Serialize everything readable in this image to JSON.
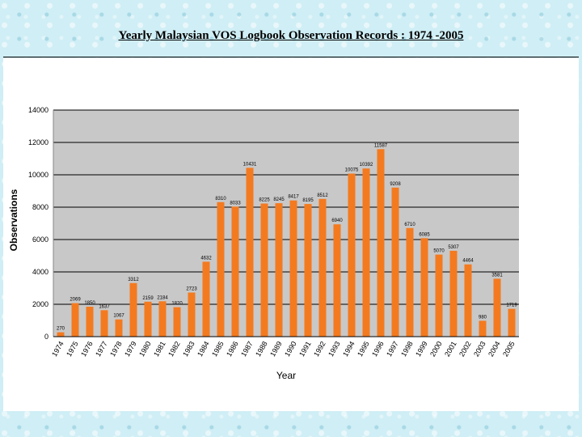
{
  "slide": {
    "title": "Yearly Malaysian VOS Logbook Observation Records : 1974 -2005"
  },
  "colors": {
    "bar": "#f47a1f",
    "plot_background": "#c8c8c8",
    "panel_background": "#ffffff",
    "slide_background": "#cfeef5"
  },
  "chart_data": {
    "type": "bar",
    "title": "",
    "xlabel": "Year",
    "ylabel": "Observations",
    "ylim": [
      0,
      14000
    ],
    "yticks": [
      0,
      2000,
      4000,
      6000,
      8000,
      10000,
      12000,
      14000
    ],
    "grid": "horizontal",
    "legend": "none",
    "categories": [
      "1974",
      "1975",
      "1976",
      "1977",
      "1978",
      "1979",
      "1980",
      "1981",
      "1982",
      "1983",
      "1984",
      "1985",
      "1986",
      "1987",
      "1988",
      "1989",
      "1990",
      "1991",
      "1992",
      "1993",
      "1994",
      "1995",
      "1996",
      "1997",
      "1998",
      "1999",
      "2000",
      "2001",
      "2002",
      "2003",
      "2004",
      "2005"
    ],
    "values": [
      270,
      2069,
      1850,
      1637,
      1067,
      3312,
      2159,
      2184,
      1820,
      2723,
      4632,
      8310,
      8033,
      10431,
      8225,
      8245,
      8417,
      8195,
      8512,
      6940,
      10075,
      10392,
      11587,
      9208,
      6710,
      6085,
      5070,
      5307,
      4464,
      980,
      3581,
      1719
    ],
    "value_labels": [
      "270",
      "2069",
      "1850",
      "1637",
      "1067",
      "3312",
      "2159",
      "2184",
      "1820",
      "2723",
      "4632",
      "8310",
      "8033",
      "10431",
      "8225",
      "8245",
      "8417",
      "8195",
      "8512",
      "6940",
      "10075",
      "10392",
      "11587",
      "9208",
      "6710",
      "6085",
      "5070",
      "5307",
      "4464",
      "980",
      "3581",
      "1719"
    ]
  }
}
